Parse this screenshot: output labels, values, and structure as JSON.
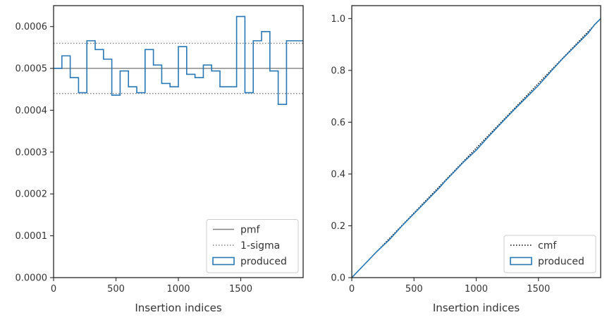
{
  "chart_data": [
    {
      "type": "step",
      "xlabel": "Insertion indices",
      "ylabel": "",
      "xlim": [
        0,
        2000
      ],
      "ylim": [
        0,
        0.00065
      ],
      "xticks": [
        0,
        500,
        1000,
        1500
      ],
      "yticks": [
        0,
        0.0001,
        0.0002,
        0.0003,
        0.0004,
        0.0005,
        0.0006
      ],
      "ytick_labels": [
        "0.0000",
        "0.0001",
        "0.0002",
        "0.0003",
        "0.0004",
        "0.0005",
        "0.0006"
      ],
      "xtick_labels": [
        "0",
        "500",
        "1000",
        "1500"
      ],
      "legend": {
        "position": "lower-right",
        "entries": [
          "pmf",
          "1-sigma",
          "produced"
        ]
      },
      "reference_lines": [
        {
          "name": "pmf",
          "y": 0.0005,
          "style": "solid",
          "color": "#808080"
        },
        {
          "name": "1-sigma",
          "y": 0.00056,
          "style": "dotted",
          "color": "#808080"
        },
        {
          "name": "1-sigma",
          "y": 0.00044,
          "style": "dotted",
          "color": "#808080"
        }
      ],
      "series": [
        {
          "name": "produced",
          "color": "#2878b5",
          "bin_width": 66.67,
          "values": [
            0.0005,
            0.00053,
            0.000478,
            0.000442,
            0.000566,
            0.000545,
            0.000522,
            0.000436,
            0.000494,
            0.000456,
            0.000442,
            0.000545,
            0.000508,
            0.000464,
            0.000456,
            0.000552,
            0.000486,
            0.000478,
            0.000508,
            0.000494,
            0.000456,
            0.000456,
            0.000624,
            0.000442,
            0.000566,
            0.000588,
            0.000494,
            0.000414,
            0.000566,
            0.000566
          ]
        }
      ]
    },
    {
      "type": "step",
      "xlabel": "Insertion indices",
      "ylabel": "",
      "xlim": [
        0,
        2000
      ],
      "ylim": [
        0,
        1.05
      ],
      "xticks": [
        0,
        500,
        1000,
        1500
      ],
      "yticks": [
        0,
        0.2,
        0.4,
        0.6,
        0.8,
        1.0
      ],
      "ytick_labels": [
        "0.0",
        "0.2",
        "0.4",
        "0.6",
        "0.8",
        "1.0"
      ],
      "xtick_labels": [
        "0",
        "500",
        "1000",
        "1500"
      ],
      "legend": {
        "position": "lower-right",
        "entries": [
          "cmf",
          "produced"
        ]
      },
      "series": [
        {
          "name": "cmf",
          "style": "dotted",
          "color": "#000000",
          "x": [
            0,
            2000
          ],
          "y": [
            0,
            1.0
          ]
        },
        {
          "name": "produced",
          "color": "#2878b5",
          "x": [
            0,
            100,
            200,
            250,
            300,
            400,
            500,
            600,
            700,
            750,
            800,
            900,
            1000,
            1100,
            1200,
            1300,
            1400,
            1500,
            1600,
            1700,
            1800,
            1900,
            1950,
            2000
          ],
          "y": [
            0,
            0.05,
            0.1,
            0.123,
            0.145,
            0.198,
            0.247,
            0.296,
            0.345,
            0.372,
            0.397,
            0.447,
            0.492,
            0.545,
            0.596,
            0.646,
            0.694,
            0.742,
            0.796,
            0.848,
            0.896,
            0.944,
            0.976,
            1.0
          ]
        }
      ]
    }
  ]
}
